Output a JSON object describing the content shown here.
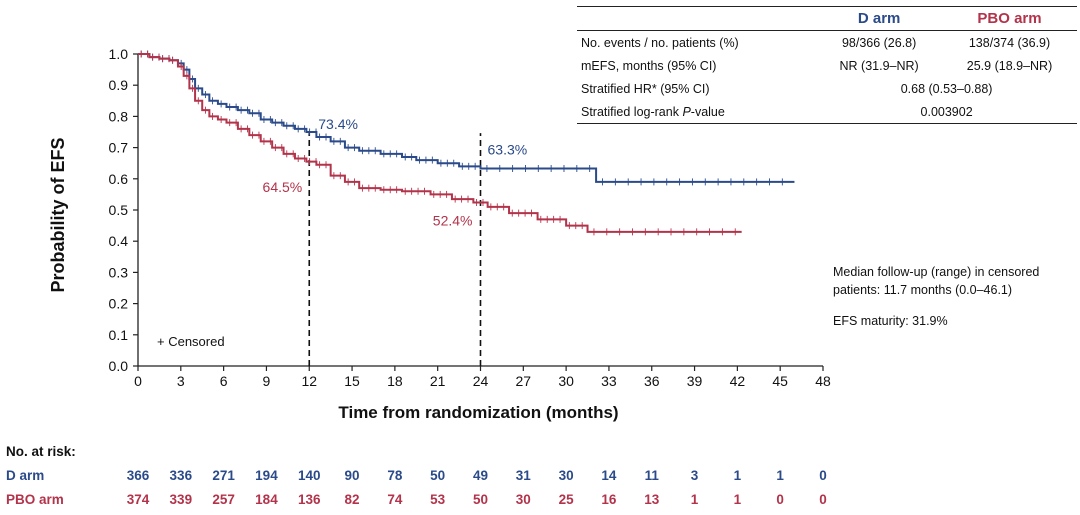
{
  "chart_data": {
    "type": "line",
    "xlabel": "Time from randomization (months)",
    "ylabel": "Probability of EFS",
    "xlim": [
      0,
      48
    ],
    "ylim": [
      0,
      1.0
    ],
    "xticks": [
      0,
      3,
      6,
      9,
      12,
      15,
      18,
      21,
      24,
      27,
      30,
      33,
      36,
      39,
      42,
      45,
      48
    ],
    "yticks": [
      0.0,
      0.1,
      0.2,
      0.3,
      0.4,
      0.5,
      0.6,
      0.7,
      0.8,
      0.9,
      1.0
    ],
    "legend": "+ Censored",
    "colors": {
      "d_arm": "#2a4a8a",
      "pbo_arm": "#b2334a"
    },
    "series": [
      {
        "name": "D arm",
        "x": [
          0,
          0.8,
          1.5,
          2.2,
          2.8,
          3.2,
          3.6,
          4.0,
          4.5,
          5.0,
          5.6,
          6.2,
          7.0,
          7.8,
          8.6,
          9.4,
          10.2,
          11.0,
          11.8,
          12.5,
          13.5,
          14.5,
          15.5,
          17.0,
          18.5,
          19.5,
          21.0,
          22.5,
          24.0,
          32.0,
          32.1,
          46.0
        ],
        "y": [
          1.0,
          0.99,
          0.985,
          0.98,
          0.97,
          0.95,
          0.92,
          0.89,
          0.87,
          0.85,
          0.84,
          0.83,
          0.82,
          0.81,
          0.79,
          0.78,
          0.77,
          0.76,
          0.75,
          0.734,
          0.72,
          0.7,
          0.69,
          0.68,
          0.67,
          0.66,
          0.65,
          0.64,
          0.633,
          0.633,
          0.59,
          0.59
        ]
      },
      {
        "name": "PBO arm",
        "x": [
          0,
          0.8,
          1.5,
          2.2,
          2.8,
          3.2,
          3.6,
          4.0,
          4.5,
          5.0,
          5.6,
          6.2,
          7.0,
          7.8,
          8.6,
          9.4,
          10.2,
          11.0,
          11.8,
          12.5,
          13.5,
          14.5,
          15.5,
          17.0,
          18.5,
          20.5,
          22.0,
          23.5,
          24.5,
          26.0,
          28.0,
          30.0,
          31.5,
          42.3
        ],
        "y": [
          1.0,
          0.99,
          0.985,
          0.98,
          0.96,
          0.93,
          0.89,
          0.85,
          0.82,
          0.8,
          0.79,
          0.78,
          0.76,
          0.74,
          0.72,
          0.7,
          0.68,
          0.665,
          0.655,
          0.645,
          0.61,
          0.59,
          0.57,
          0.565,
          0.56,
          0.55,
          0.535,
          0.524,
          0.51,
          0.49,
          0.47,
          0.45,
          0.43,
          0.43
        ]
      }
    ],
    "annotations": [
      {
        "text": "73.4%",
        "series": "D arm",
        "x": 12,
        "y": 0.734
      },
      {
        "text": "64.5%",
        "series": "PBO arm",
        "x": 12,
        "y": 0.645
      },
      {
        "text": "63.3%",
        "series": "D arm",
        "x": 24,
        "y": 0.633
      },
      {
        "text": "52.4%",
        "series": "PBO arm",
        "x": 24,
        "y": 0.524
      }
    ],
    "reference_lines_x": [
      12,
      24
    ]
  },
  "stats_table": {
    "col_d": "D arm",
    "col_pbo": "PBO arm",
    "rows": [
      {
        "label": "No. events / no. patients (%)",
        "d": "98/366 (26.8)",
        "pbo": "138/374 (36.9)"
      },
      {
        "label": "mEFS, months (95% CI)",
        "d": "NR (31.9–NR)",
        "pbo": "25.9 (18.9–NR)"
      }
    ],
    "hr_label": "Stratified HR* (95% CI)",
    "hr_value": "0.68 (0.53–0.88)",
    "p_label_pre": "Stratified log-rank ",
    "p_label_italic": "P",
    "p_label_post": "-value",
    "p_value": "0.003902"
  },
  "notes": {
    "followup_line1": "Median follow-up (range) in censored",
    "followup_line2": "patients: 11.7 months (0.0–46.1)",
    "maturity": "EFS maturity: 31.9%"
  },
  "risk_table": {
    "title": "No. at risk:",
    "d_label": "D arm",
    "pbo_label": "PBO arm",
    "d_values": [
      "366",
      "336",
      "271",
      "194",
      "140",
      "90",
      "78",
      "50",
      "49",
      "31",
      "30",
      "14",
      "11",
      "3",
      "1",
      "1",
      "0"
    ],
    "pbo_values": [
      "374",
      "339",
      "257",
      "184",
      "136",
      "82",
      "74",
      "53",
      "50",
      "30",
      "25",
      "16",
      "13",
      "1",
      "1",
      "0",
      "0"
    ]
  }
}
